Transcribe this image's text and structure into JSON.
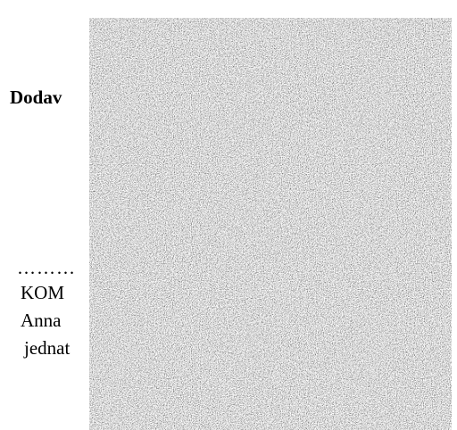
{
  "document": {
    "heading": "Dodav",
    "signature_dots": "………",
    "signatory_lines": [
      "KOM",
      "Anna",
      "jednat"
    ]
  },
  "redaction": {
    "kind": "noise",
    "colors": {
      "dark": "#1e1e1e",
      "light": "#ffffff"
    }
  }
}
